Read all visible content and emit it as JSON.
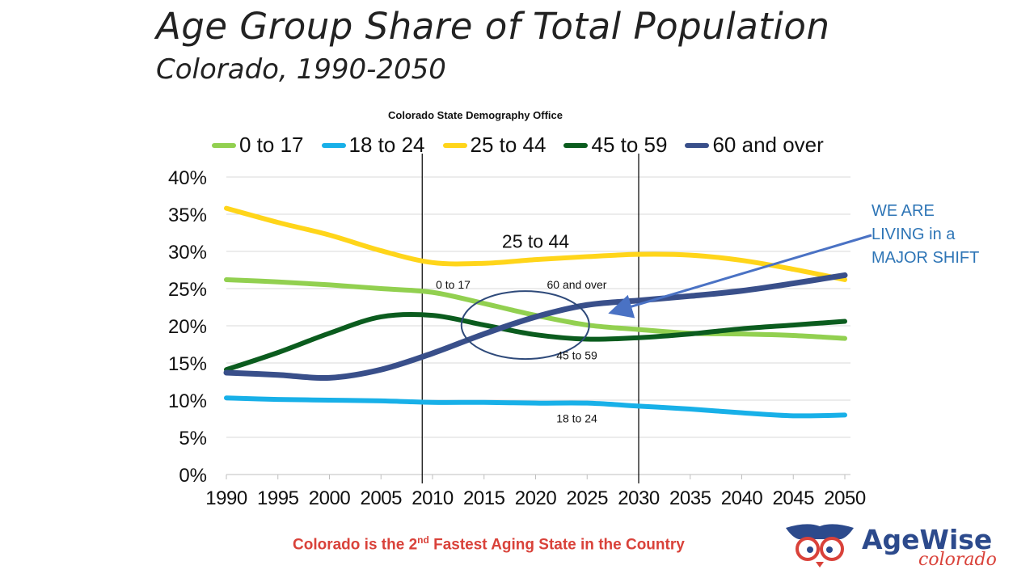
{
  "title": "Age Group Share of Total Population",
  "subtitle": "Colorado, 1990-2050",
  "source": "Colorado State Demography Office",
  "callout": [
    "WE ARE",
    "LIVING in a",
    "MAJOR SHIFT"
  ],
  "footer": {
    "pre": "Colorado is the 2",
    "sup": "nd",
    "post": " Fastest Aging State in the Country"
  },
  "logo": {
    "text": "AgeWise",
    "subtext": "colorado"
  },
  "chart_data": {
    "type": "line",
    "title": "Age Group Share of Total Population",
    "x": [
      1990,
      1995,
      2000,
      2005,
      2010,
      2015,
      2020,
      2025,
      2030,
      2035,
      2040,
      2045,
      2050
    ],
    "xticks": [
      "1990",
      "1995",
      "2000",
      "2005",
      "2010",
      "2015",
      "2020",
      "2025",
      "2030",
      "2035",
      "2040",
      "2045",
      "2050"
    ],
    "yticks": [
      "0%",
      "5%",
      "10%",
      "15%",
      "20%",
      "25%",
      "30%",
      "35%",
      "40%"
    ],
    "ylim": [
      0,
      40
    ],
    "grid": true,
    "legend": "top",
    "series": [
      {
        "name": "0 to 17",
        "color": "#92d050",
        "values": [
          26.2,
          25.9,
          25.5,
          25.0,
          24.5,
          23.0,
          21.4,
          20.1,
          19.5,
          19.0,
          18.9,
          18.7,
          18.3
        ]
      },
      {
        "name": "18 to 24",
        "color": "#18b0e8",
        "values": [
          10.3,
          10.1,
          10.0,
          9.9,
          9.7,
          9.7,
          9.6,
          9.6,
          9.2,
          8.8,
          8.3,
          7.9,
          8.0
        ]
      },
      {
        "name": "25 to 44",
        "color": "#ffd51a",
        "values": [
          35.8,
          33.9,
          32.2,
          30.1,
          28.5,
          28.4,
          28.9,
          29.3,
          29.6,
          29.5,
          28.8,
          27.6,
          26.2
        ]
      },
      {
        "name": "45 to 59",
        "color": "#0b5c1e",
        "values": [
          14.1,
          16.4,
          19.0,
          21.2,
          21.4,
          20.1,
          18.8,
          18.2,
          18.4,
          18.9,
          19.6,
          20.1,
          20.6
        ]
      },
      {
        "name": "60 and over",
        "color": "#394f8a",
        "values": [
          13.7,
          13.4,
          13.0,
          14.1,
          16.3,
          18.9,
          21.2,
          22.8,
          23.4,
          24.0,
          24.7,
          25.7,
          26.8
        ]
      }
    ],
    "vertical_markers": [
      2009,
      2030
    ],
    "annotations": [
      {
        "text": "25 to 44",
        "x": 2020,
        "y": 30.5
      },
      {
        "text": "0 to 17",
        "x": 2012,
        "y": 25
      },
      {
        "text": "60 and over",
        "x": 2024,
        "y": 25
      },
      {
        "text": "45 to 59",
        "x": 2024,
        "y": 15.5
      },
      {
        "text": "18 to 24",
        "x": 2024,
        "y": 7
      }
    ]
  }
}
